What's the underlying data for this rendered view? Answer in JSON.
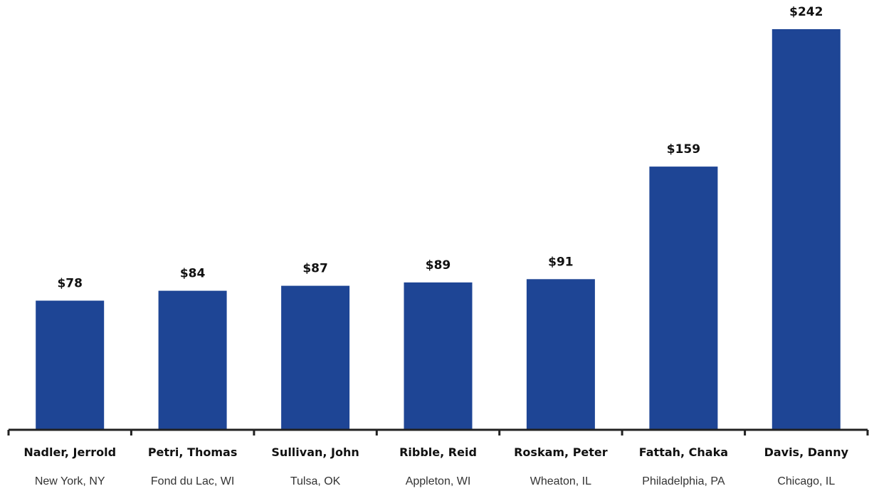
{
  "colors": {
    "bar": "#1e4595",
    "axis": "#222222",
    "text": "#111111",
    "subtext": "#333333",
    "background": "#ffffff"
  },
  "chart_data": {
    "type": "bar",
    "title": "",
    "xlabel": "",
    "ylabel": "",
    "categories": [
      "Nadler, Jerrold",
      "Petri, Thomas",
      "Sullivan, John",
      "Ribble, Reid",
      "Roskam, Peter",
      "Fattah, Chaka",
      "Davis, Danny"
    ],
    "sublabels": [
      "New York, NY",
      "Fond du Lac, WI",
      "Tulsa, OK",
      "Appleton, WI",
      "Wheaton, IL",
      "Philadelphia, PA",
      "Chicago, IL"
    ],
    "values": [
      78,
      84,
      87,
      89,
      91,
      159,
      242
    ],
    "value_labels": [
      "$78",
      "$84",
      "$87",
      "$89",
      "$91",
      "$159",
      "$242"
    ],
    "ylim": [
      0,
      242
    ],
    "grid": false,
    "legend": "none"
  }
}
